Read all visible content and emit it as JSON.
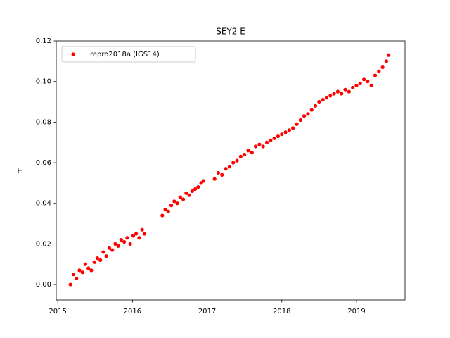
{
  "chart_data": {
    "type": "scatter",
    "title": "SEY2 E",
    "y_label": "m",
    "x": [
      2015.17,
      2015.21,
      2015.25,
      2015.29,
      2015.33,
      2015.37,
      2015.41,
      2015.45,
      2015.49,
      2015.53,
      2015.57,
      2015.61,
      2015.65,
      2015.69,
      2015.73,
      2015.77,
      2015.81,
      2015.85,
      2015.89,
      2015.93,
      2015.97,
      2016.01,
      2016.05,
      2016.09,
      2016.13,
      2016.16,
      2016.4,
      2016.44,
      2016.48,
      2016.52,
      2016.56,
      2016.6,
      2016.64,
      2016.68,
      2016.72,
      2016.76,
      2016.8,
      2016.84,
      2016.88,
      2016.92,
      2016.95,
      2017.1,
      2017.15,
      2017.2,
      2017.25,
      2017.3,
      2017.35,
      2017.4,
      2017.45,
      2017.5,
      2017.55,
      2017.6,
      2017.65,
      2017.7,
      2017.75,
      2017.8,
      2017.85,
      2017.9,
      2017.95,
      2018.0,
      2018.05,
      2018.1,
      2018.15,
      2018.2,
      2018.25,
      2018.3,
      2018.35,
      2018.4,
      2018.45,
      2018.5,
      2018.55,
      2018.6,
      2018.65,
      2018.7,
      2018.75,
      2018.8,
      2018.85,
      2018.9,
      2018.95,
      2019.0,
      2019.05,
      2019.1,
      2019.15,
      2019.2,
      2019.25,
      2019.3,
      2019.35,
      2019.4,
      2019.43
    ],
    "series": [
      {
        "name": "repro2018a (IGS14)",
        "color": "#ff0000",
        "values": [
          0.0,
          0.005,
          0.003,
          0.007,
          0.006,
          0.01,
          0.008,
          0.007,
          0.011,
          0.013,
          0.012,
          0.016,
          0.014,
          0.018,
          0.017,
          0.02,
          0.019,
          0.022,
          0.021,
          0.023,
          0.02,
          0.024,
          0.025,
          0.023,
          0.027,
          0.025,
          0.034,
          0.037,
          0.036,
          0.039,
          0.041,
          0.04,
          0.043,
          0.042,
          0.045,
          0.044,
          0.046,
          0.047,
          0.048,
          0.05,
          0.051,
          0.052,
          0.055,
          0.054,
          0.057,
          0.058,
          0.06,
          0.061,
          0.063,
          0.064,
          0.066,
          0.065,
          0.068,
          0.069,
          0.068,
          0.07,
          0.071,
          0.072,
          0.073,
          0.074,
          0.075,
          0.076,
          0.077,
          0.079,
          0.081,
          0.083,
          0.084,
          0.086,
          0.088,
          0.09,
          0.091,
          0.092,
          0.093,
          0.094,
          0.095,
          0.094,
          0.096,
          0.095,
          0.097,
          0.098,
          0.099,
          0.101,
          0.1,
          0.098,
          0.103,
          0.105,
          0.107,
          0.11,
          0.113
        ]
      }
    ],
    "xlim": [
      2014.98,
      2019.65
    ],
    "xticks": [
      2015,
      2016,
      2017,
      2018,
      2019
    ],
    "ylim": [
      -0.0076,
      0.12
    ],
    "yticks": [
      {
        "value": 0,
        "label": "0.00"
      },
      0.02,
      0.04,
      0.06,
      0.08,
      {
        "value": 0.1,
        "label": "0.10"
      },
      0.12
    ],
    "grid": false,
    "legend": "upper left"
  }
}
